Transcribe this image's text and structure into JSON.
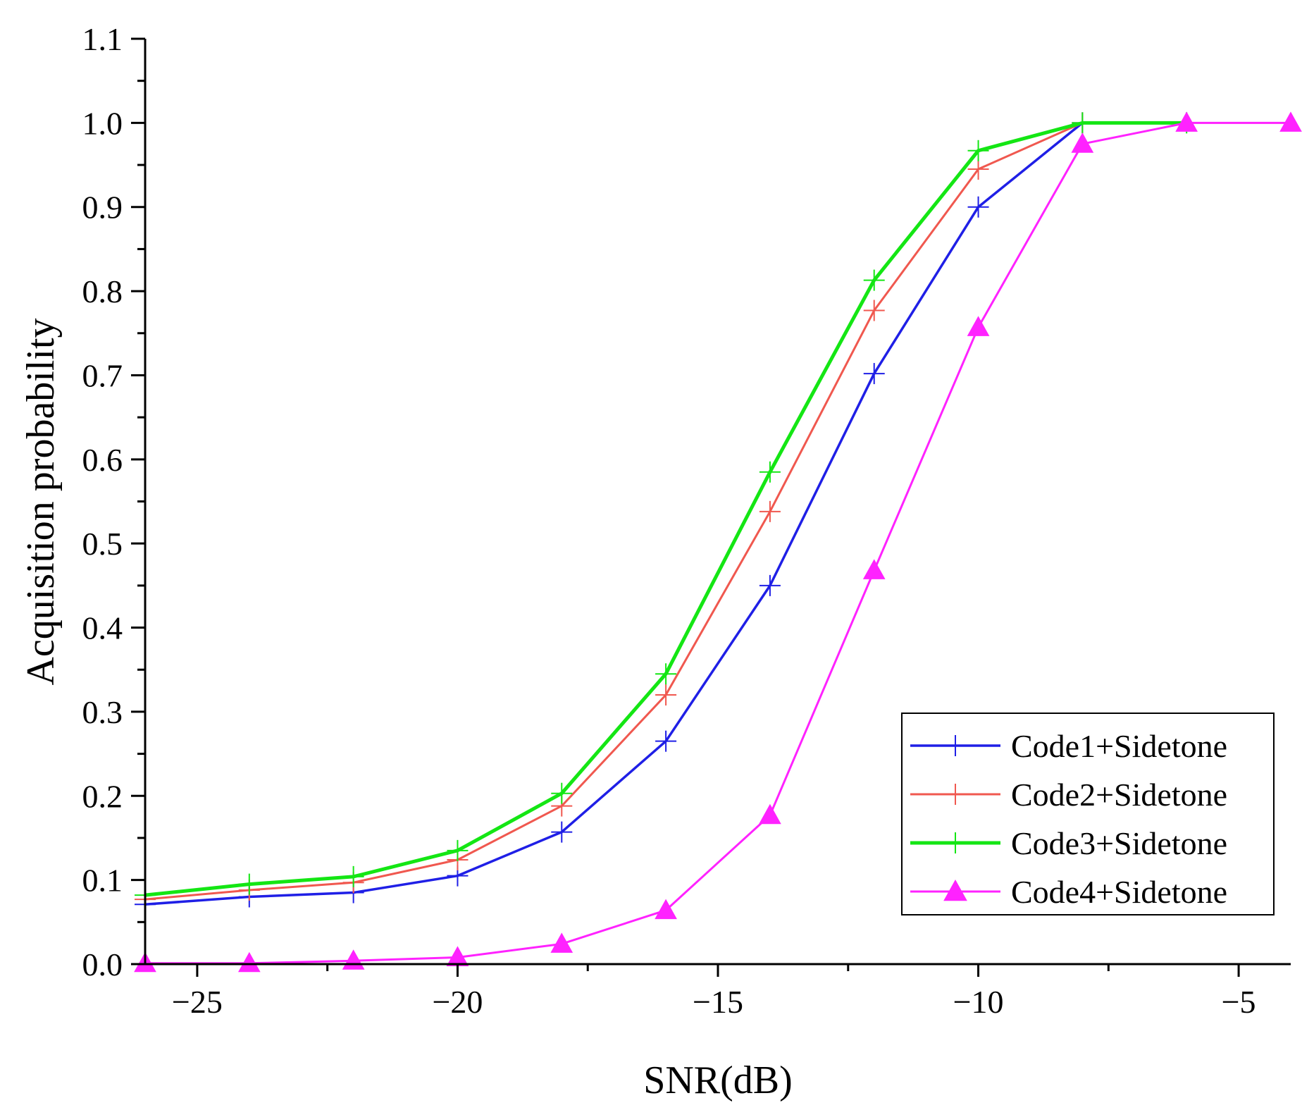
{
  "chart_data": {
    "type": "line",
    "title": "",
    "xlabel": "SNR(dB)",
    "ylabel": "Acquisition probability",
    "xlim": [
      -26,
      -4
    ],
    "ylim": [
      0.0,
      1.1
    ],
    "xticks": [
      -25,
      -20,
      -15,
      -10,
      -5
    ],
    "xtick_labels": [
      "−25",
      "−20",
      "−15",
      "−10",
      "−5"
    ],
    "yticks": [
      0.0,
      0.1,
      0.2,
      0.3,
      0.4,
      0.5,
      0.6,
      0.7,
      0.8,
      0.9,
      1.0,
      1.1
    ],
    "ytick_labels": [
      "0.0",
      "0.1",
      "0.2",
      "0.3",
      "0.4",
      "0.5",
      "0.6",
      "0.7",
      "0.8",
      "0.9",
      "1.0",
      "1.1"
    ],
    "grid": false,
    "legend_position": "bottom-right",
    "series": [
      {
        "name": "Code1+Sidetone",
        "color": "#1f1fe6",
        "marker": "plus",
        "x": [
          -26,
          -24,
          -22,
          -20,
          -18,
          -16,
          -14,
          -12,
          -10,
          -8
        ],
        "y": [
          0.071,
          0.08,
          0.085,
          0.105,
          0.157,
          0.265,
          0.45,
          0.702,
          0.9,
          1.0
        ]
      },
      {
        "name": "Code2+Sidetone",
        "color": "#f0584f",
        "marker": "plus",
        "x": [
          -26,
          -24,
          -22,
          -20,
          -18,
          -16,
          -14,
          -12,
          -10,
          -8
        ],
        "y": [
          0.077,
          0.088,
          0.097,
          0.124,
          0.188,
          0.32,
          0.538,
          0.777,
          0.945,
          1.0
        ]
      },
      {
        "name": "Code3+Sidetone",
        "color": "#14e614",
        "marker": "plus",
        "x": [
          -26,
          -24,
          -22,
          -20,
          -18,
          -16,
          -14,
          -12,
          -10,
          -8,
          -6
        ],
        "y": [
          0.082,
          0.095,
          0.104,
          0.135,
          0.203,
          0.345,
          0.585,
          0.813,
          0.967,
          1.0,
          1.0
        ]
      },
      {
        "name": "Code4+Sidetone",
        "color": "#ff22ff",
        "marker": "triangle",
        "x": [
          -26,
          -24,
          -22,
          -20,
          -18,
          -16,
          -14,
          -12,
          -10,
          -8,
          -6,
          -4
        ],
        "y": [
          0.001,
          0.001,
          0.004,
          0.008,
          0.024,
          0.064,
          0.177,
          0.468,
          0.757,
          0.975,
          1.0,
          1.0
        ]
      }
    ]
  }
}
